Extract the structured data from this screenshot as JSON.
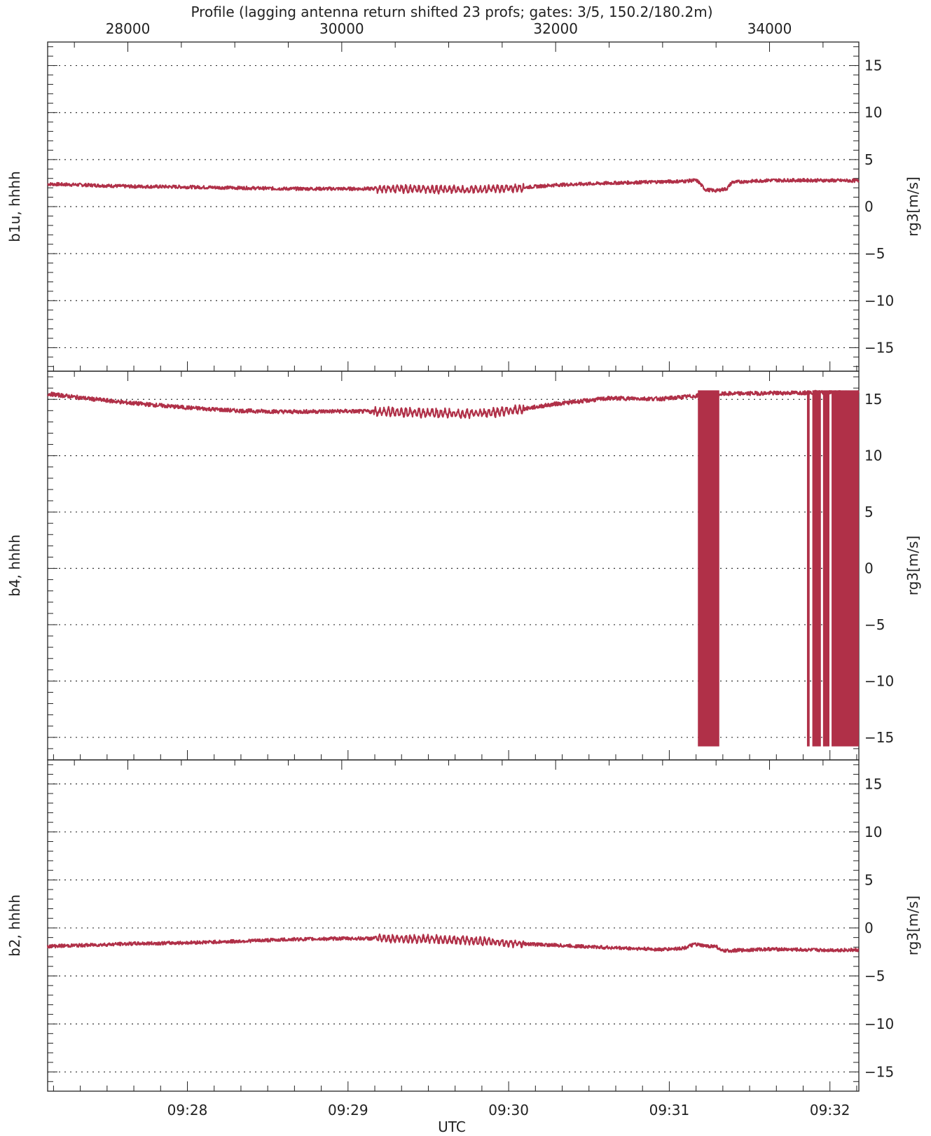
{
  "title": "Profile (lagging antenna return shifted 23 profs; gates: 3/5, 150.2/180.2m)",
  "x_label": "UTC",
  "colors": {
    "line": "#b03048",
    "frame": "#222222",
    "grid": "#333333"
  },
  "chart_data": {
    "type": "line",
    "title": "Profile (lagging antenna return shifted 23 profs; gates: 3/5, 150.2/180.2m)",
    "xlabel": "UTC",
    "top_axis": {
      "range": [
        27250,
        34835
      ],
      "ticks": [
        28000,
        30000,
        32000,
        34000
      ],
      "tick_labels": [
        "28000",
        "30000",
        "32000",
        "34000"
      ]
    },
    "bottom_axis": {
      "range_minutes": [
        567.13,
        572.18
      ],
      "ticks": [
        568,
        569,
        570,
        571,
        572
      ],
      "tick_labels": [
        "09:28",
        "09:29",
        "09:30",
        "09:31",
        "09:32"
      ]
    },
    "panels": [
      {
        "ylabel": "b1u, hhhh",
        "right_label": "rg3[m/s]",
        "ylim": [
          -17.5,
          17.5
        ],
        "y_ticks": [
          15,
          10,
          5,
          0,
          -5,
          -10,
          -15
        ],
        "y_tick_labels": [
          "15",
          "10",
          "5",
          "0",
          "−5",
          "−10",
          "−15"
        ],
        "grid": true,
        "series": [
          {
            "x": [
              27250,
              27600,
              28000,
              28500,
              29000,
              29500,
              30000,
              30400,
              30800,
              31200,
              31600,
              32000,
              32500,
              33000,
              33200,
              33300,
              33330,
              33400,
              33500,
              33600,
              33650,
              34000,
              34400,
              34835
            ],
            "y": [
              2.4,
              2.3,
              2.15,
              2.1,
              2.0,
              1.9,
              1.9,
              1.9,
              1.85,
              1.8,
              1.95,
              2.3,
              2.5,
              2.65,
              2.7,
              2.8,
              2.7,
              1.8,
              1.7,
              1.9,
              2.6,
              2.8,
              2.8,
              2.75
            ]
          }
        ]
      },
      {
        "ylabel": "b4, hhhh",
        "right_label": "rg3[m/s]",
        "ylim": [
          -17,
          17.5
        ],
        "y_ticks": [
          15,
          10,
          5,
          0,
          -5,
          -10,
          -15
        ],
        "y_tick_labels": [
          "15",
          "10",
          "5",
          "0",
          "−5",
          "−10",
          "−15"
        ],
        "grid": true,
        "series": [
          {
            "x": [
              27250,
              27600,
              28000,
              28500,
              29000,
              29500,
              30000,
              30400,
              30800,
              31200,
              31600,
              32000,
              32500,
              33000,
              33300,
              33600,
              34000,
              34400,
              34835
            ],
            "y": [
              15.5,
              15.1,
              14.7,
              14.3,
              14.0,
              13.9,
              13.95,
              13.9,
              13.8,
              13.7,
              14.0,
              14.6,
              15.1,
              15.05,
              15.3,
              15.5,
              15.55,
              15.6,
              15.6
            ]
          }
        ],
        "aliased_bands": [
          {
            "x_range": [
              33330,
              33530
            ],
            "y_range": [
              -15.8,
              15.8
            ]
          },
          {
            "x_range": [
              34350,
              34375
            ],
            "y_range": [
              -15.8,
              15.8
            ]
          },
          {
            "x_range": [
              34400,
              34480
            ],
            "y_range": [
              -15.8,
              15.8
            ]
          },
          {
            "x_range": [
              34500,
              34560
            ],
            "y_range": [
              -15.8,
              15.8
            ]
          },
          {
            "x_range": [
              34580,
              34835
            ],
            "y_range": [
              -15.8,
              15.8
            ]
          }
        ]
      },
      {
        "ylabel": "b2, hhhh",
        "right_label": "rg3[m/s]",
        "ylim": [
          -17,
          17.5
        ],
        "y_ticks": [
          15,
          10,
          5,
          0,
          -5,
          -10,
          -15
        ],
        "y_tick_labels": [
          "15",
          "10",
          "5",
          "0",
          "−5",
          "−10",
          "−15"
        ],
        "grid": true,
        "series": [
          {
            "x": [
              27250,
              27600,
              28000,
              28500,
              29000,
              29500,
              30000,
              30400,
              30800,
              31200,
              31600,
              32000,
              32500,
              33000,
              33200,
              33300,
              33400,
              33500,
              33550,
              34000,
              34400,
              34835
            ],
            "y": [
              -1.9,
              -1.8,
              -1.65,
              -1.55,
              -1.4,
              -1.2,
              -1.1,
              -1.1,
              -1.15,
              -1.3,
              -1.6,
              -1.8,
              -2.05,
              -2.25,
              -2.1,
              -1.7,
              -1.9,
              -1.9,
              -2.4,
              -2.2,
              -2.3,
              -2.3
            ]
          }
        ]
      }
    ]
  }
}
